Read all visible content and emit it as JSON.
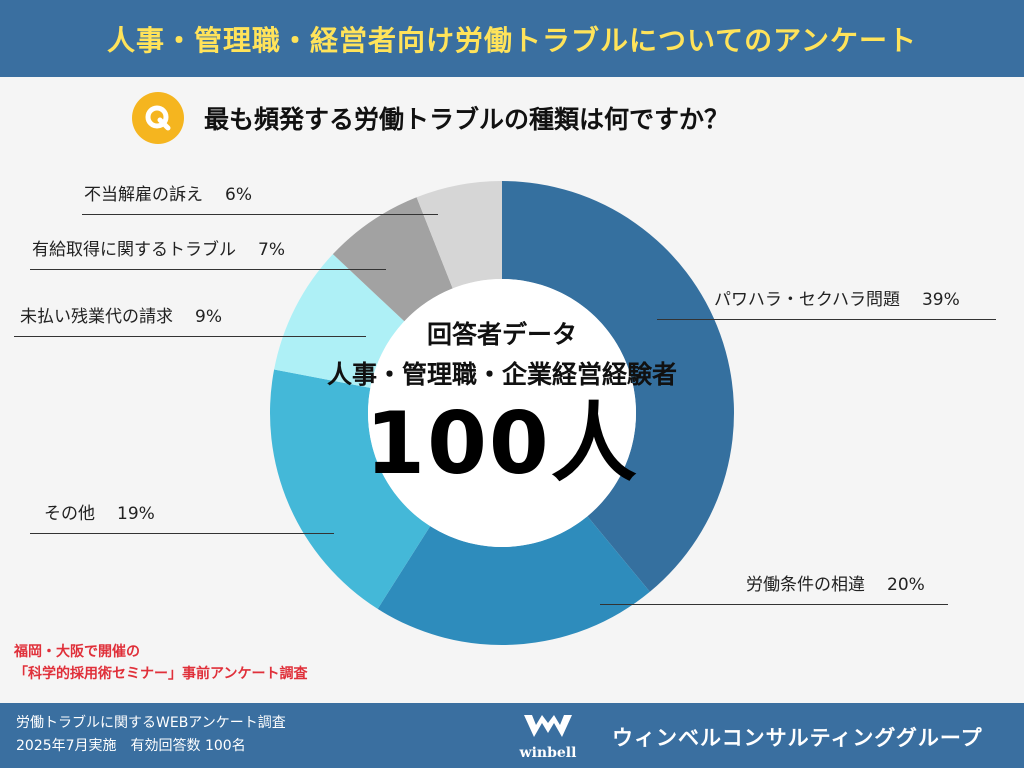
{
  "header": {
    "title": "人事・管理職・経営者向け労働トラブルについてのアンケート"
  },
  "question": {
    "badge": "Q",
    "text": "最も頻発する労働トラブルの種類は何ですか？"
  },
  "center": {
    "line1": "回答者データ",
    "line2": "人事・管理職・企業経営経験者",
    "count": "100人"
  },
  "chart_data": {
    "type": "pie",
    "categories": [
      "パワハラ・セクハラ問題",
      "労働条件の相違",
      "その他",
      "未払い残業代の請求",
      "有給取得に関するトラブル",
      "不当解雇の訴え"
    ],
    "values": [
      39,
      20,
      19,
      9,
      7,
      6
    ],
    "value_labels": [
      "39%",
      "20%",
      "19%",
      "9%",
      "7%",
      "6%"
    ],
    "colors": [
      "#35709f",
      "#2e8cbc",
      "#44b8d8",
      "#aef0f6",
      "#a2a2a2",
      "#d6d6d6"
    ],
    "donut": true
  },
  "note": {
    "line1": "福岡・大阪で開催の",
    "line2": "「科学的採用術セミナー」事前アンケート調査"
  },
  "footer": {
    "line1": "労働トラブルに関するWEBアンケート調査",
    "line2": "2025年7月実施　有効回答数 100名",
    "logo_text": "winbell",
    "brand": "ウィンベルコンサルティンググループ"
  }
}
